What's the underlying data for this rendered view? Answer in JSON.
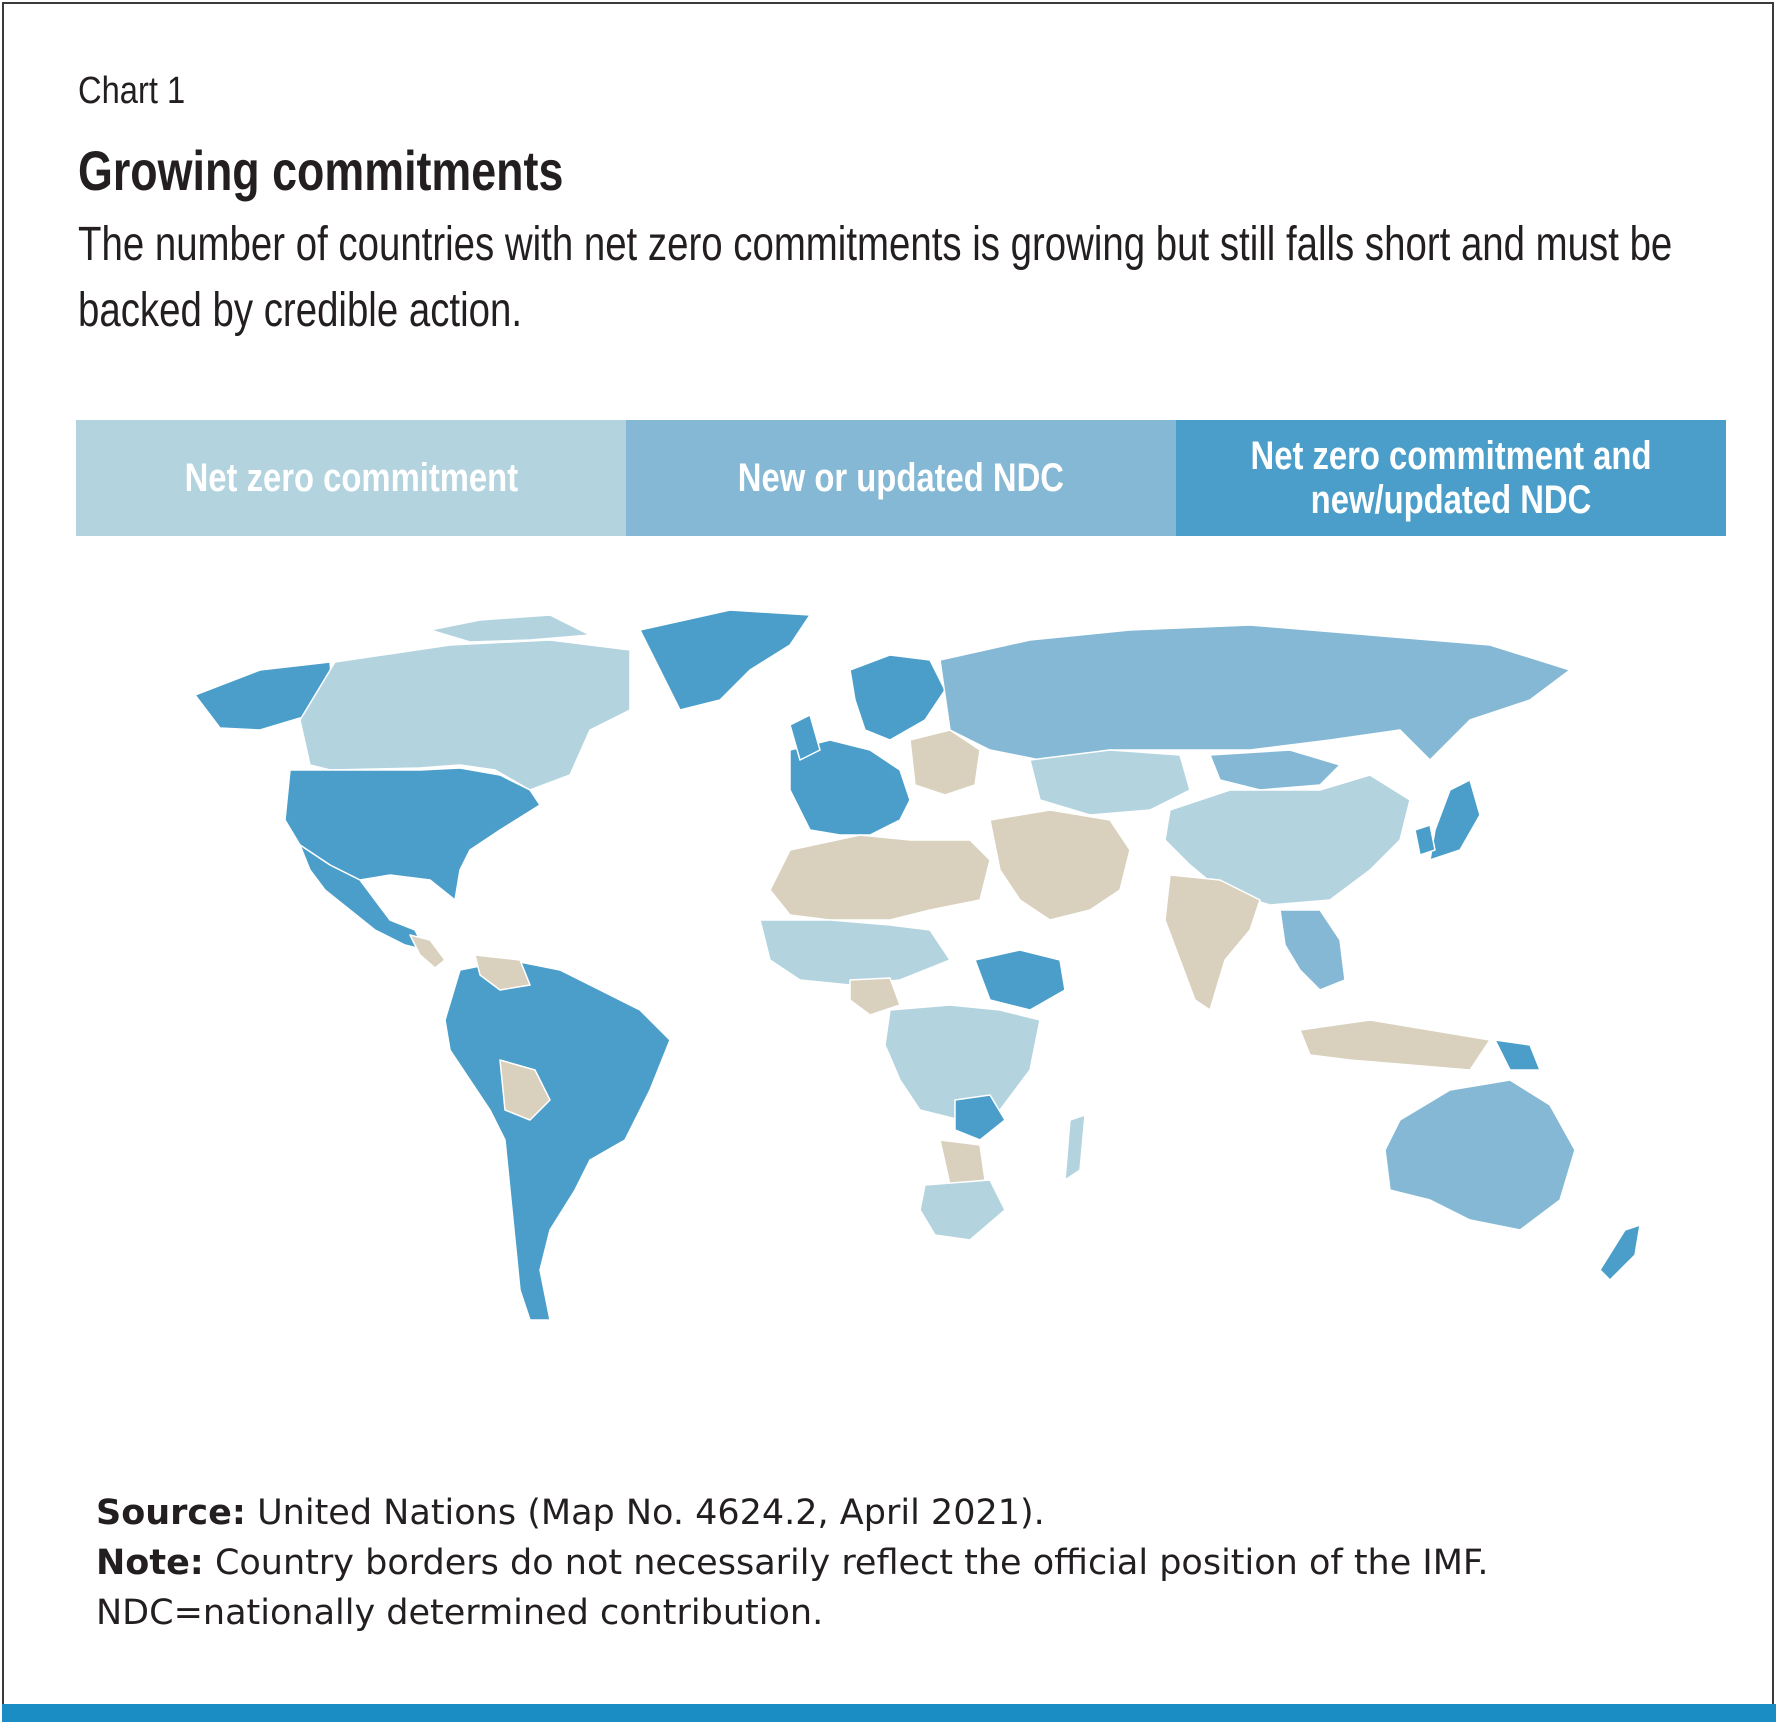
{
  "chart_label": "Chart 1",
  "title": "Growing commitments",
  "subtitle": "The number of countries with net zero commitments is growing but still falls short and must be backed by credible action.",
  "legend": [
    {
      "label": "Net zero commitment",
      "color": "#b3d3df"
    },
    {
      "label": "New or updated NDC",
      "color": "#84b8d4"
    },
    {
      "label": "Net zero commitment and new/updated NDC",
      "color": "#4a9ec9"
    }
  ],
  "no_data_color": "#d9d0bd",
  "footer": {
    "source_label": "Source:",
    "source_text": "United Nations (Map No. 4624.2, April 2021).",
    "note_label": "Note:",
    "note_text": "Country borders do not necessarily reflect the official position of the IMF.",
    "ndc_definition": "NDC=nationally determined contribution."
  }
}
